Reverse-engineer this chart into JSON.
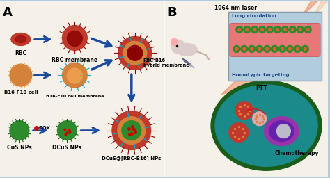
{
  "bg_color": "#f5f0e8",
  "panel_A_label": "A",
  "panel_B_label": "B",
  "labels": {
    "rbc": "RBC",
    "rbc_membrane": "RBC membrane",
    "b16_cell": "B16-F10 cell",
    "b16_membrane": "B16-F10 cell membrane",
    "rbc_b16": "RBC-B16\nhybrid membrane",
    "cus_nps": "CuS NPs",
    "dcus_nps": "DCuS NPs",
    "dcus_rbc_b16": "DCuS@[RBC-B16] NPs",
    "dox": "DOX",
    "laser": "1064 nm laser",
    "long_circ": "Long circulation",
    "homotypic": "Homotypic targeting",
    "ptt": "PTT",
    "chemo": "Chemotherapy"
  },
  "colors": {
    "rbc_red": "#c0392b",
    "rbc_dark": "#8B0000",
    "orange_cell": "#d4813a",
    "orange_light": "#f0a050",
    "green_nps": "#2d8a2d",
    "dark_green": "#1a5c1a",
    "blue_arrow": "#1a4a9e",
    "teal_cell": "#1a8a8a",
    "purple": "#8B008B",
    "cyan_spike": "#00aacc",
    "box_bg": "#b0ccdd",
    "text_dark": "#111111",
    "label_bold": "#111111",
    "dot_red": "#cc0000"
  }
}
